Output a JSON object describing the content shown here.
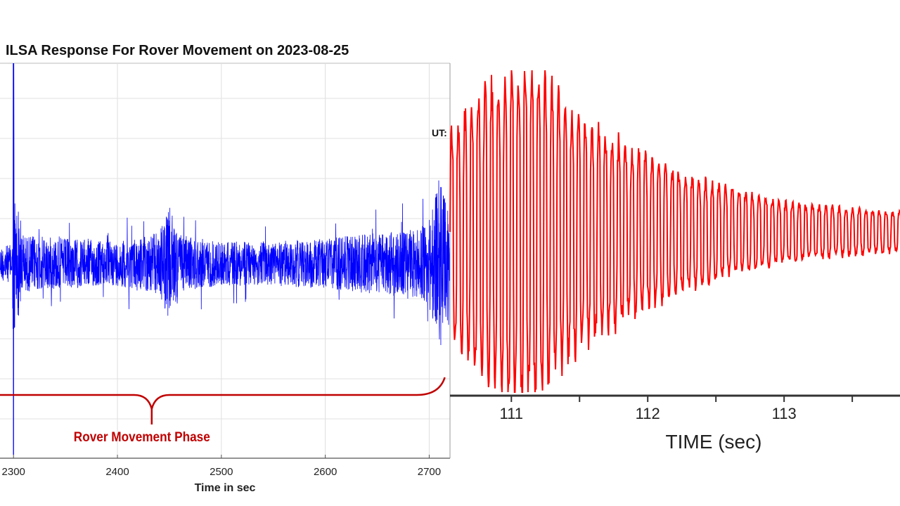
{
  "chart_data": [
    {
      "type": "line",
      "title": "ILSA Response For Rover Movement on 2023-08-25",
      "xlabel": "Time in sec",
      "ylabel": "",
      "xlim": [
        2287,
        2720
      ],
      "x_ticks": [
        2300,
        2400,
        2500,
        2600,
        2700
      ],
      "grid": true,
      "series_color": "#0000ff",
      "annotation": {
        "label": "Rover Movement Phase",
        "from_x": 2287,
        "to_x": 2715,
        "color": "#c00000"
      },
      "edge_label": "UT:",
      "series": [
        {
          "name": "",
          "description_points": [
            {
              "x": 2287,
              "amp": 0.28
            },
            {
              "x": 2299,
              "amp": 0.3
            },
            {
              "x": 2300,
              "amp": 3.2
            },
            {
              "x": 2301,
              "amp": 1.2
            },
            {
              "x": 2310,
              "amp": 0.45
            },
            {
              "x": 2350,
              "amp": 0.4
            },
            {
              "x": 2400,
              "amp": 0.35
            },
            {
              "x": 2440,
              "amp": 0.5
            },
            {
              "x": 2450,
              "amp": 0.9
            },
            {
              "x": 2460,
              "amp": 0.45
            },
            {
              "x": 2500,
              "amp": 0.35
            },
            {
              "x": 2550,
              "amp": 0.35
            },
            {
              "x": 2600,
              "amp": 0.4
            },
            {
              "x": 2690,
              "amp": 0.55
            },
            {
              "x": 2700,
              "amp": 0.7
            },
            {
              "x": 2710,
              "amp": 1.4
            },
            {
              "x": 2720,
              "amp": 0.7
            }
          ]
        }
      ]
    },
    {
      "type": "line",
      "title": "",
      "xlabel": "TIME (sec)",
      "ylabel": "",
      "xlim": [
        110.55,
        113.85
      ],
      "x_ticks": [
        111,
        112,
        113
      ],
      "grid": false,
      "series_color": "#ff0000",
      "series": [
        {
          "name": "",
          "envelope_points": [
            {
              "x": 110.55,
              "amp": 0.6
            },
            {
              "x": 110.8,
              "amp": 0.85
            },
            {
              "x": 111.0,
              "amp": 1.0
            },
            {
              "x": 111.2,
              "amp": 0.95
            },
            {
              "x": 111.5,
              "amp": 0.7
            },
            {
              "x": 112.0,
              "amp": 0.45
            },
            {
              "x": 112.5,
              "amp": 0.28
            },
            {
              "x": 113.0,
              "amp": 0.18
            },
            {
              "x": 113.5,
              "amp": 0.14
            },
            {
              "x": 113.85,
              "amp": 0.12
            }
          ]
        }
      ]
    }
  ]
}
